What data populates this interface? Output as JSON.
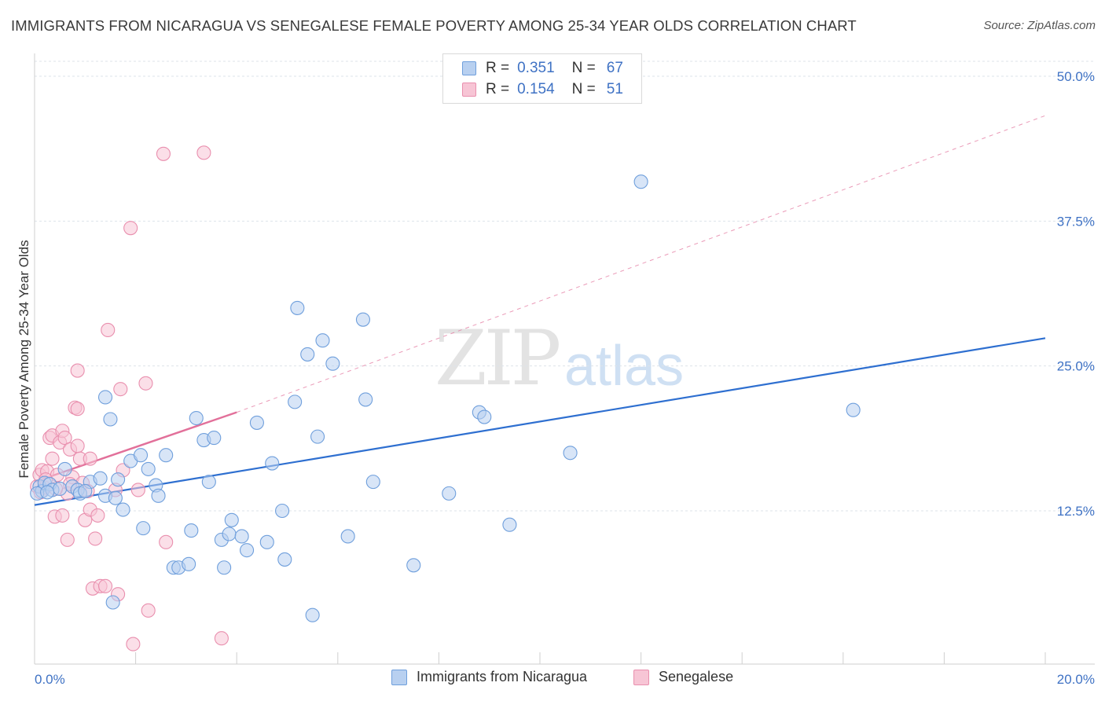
{
  "title": "IMMIGRANTS FROM NICARAGUA VS SENEGALESE FEMALE POVERTY AMONG 25-34 YEAR OLDS CORRELATION CHART",
  "source": "Source: ZipAtlas.com",
  "watermark": {
    "zip": "ZIP",
    "atlas": "atlas"
  },
  "colors": {
    "blue_fill": "#b8d0f0",
    "blue_stroke": "#6f9fdc",
    "blue_line": "#2e6fd0",
    "pink_fill": "#f7c5d5",
    "pink_stroke": "#e98fae",
    "pink_line": "#e2709a",
    "tick_text": "#3f72c4",
    "grid": "#dde3ea"
  },
  "legend": {
    "rows": [
      {
        "r_label": "R =",
        "r_value": "0.351",
        "n_label": "N =",
        "n_value": "67"
      },
      {
        "r_label": "R =",
        "r_value": "0.154",
        "n_label": "N =",
        "n_value": "51"
      }
    ]
  },
  "bottom_legend": [
    "Immigrants from Nicaragua",
    "Senegalese"
  ],
  "chart_data": {
    "type": "scatter",
    "title": "IMMIGRANTS FROM NICARAGUA VS SENEGALESE FEMALE POVERTY AMONG 25-34 YEAR OLDS CORRELATION CHART",
    "xlabel": "",
    "ylabel": "Female Poverty Among 25-34 Year Olds",
    "xlim": [
      0,
      20
    ],
    "ylim": [
      0,
      50
    ],
    "x_tick_labels": [
      "0.0%",
      "20.0%"
    ],
    "y_ticks": [
      12.5,
      25.0,
      37.5,
      50.0
    ],
    "y_tick_labels": [
      "12.5%",
      "25.0%",
      "37.5%",
      "50.0%"
    ],
    "grid": true,
    "legend_position": "top-center",
    "series": [
      {
        "name": "Immigrants from Nicaragua",
        "color": "#6f9fdc",
        "trend": {
          "x": [
            0,
            20
          ],
          "y": [
            13.0,
            27.4
          ]
        },
        "points": [
          [
            0.1,
            14.6
          ],
          [
            0.15,
            14.2
          ],
          [
            0.2,
            14.9
          ],
          [
            0.3,
            14.8
          ],
          [
            0.35,
            14.3
          ],
          [
            0.5,
            14.4
          ],
          [
            0.6,
            16.1
          ],
          [
            0.75,
            14.6
          ],
          [
            0.85,
            14.3
          ],
          [
            0.9,
            14.0
          ],
          [
            1.1,
            15.0
          ],
          [
            1.3,
            15.3
          ],
          [
            1.4,
            13.8
          ],
          [
            1.4,
            22.3
          ],
          [
            1.5,
            20.4
          ],
          [
            1.55,
            4.6
          ],
          [
            1.6,
            13.6
          ],
          [
            1.65,
            15.2
          ],
          [
            1.75,
            12.6
          ],
          [
            1.9,
            16.8
          ],
          [
            2.1,
            17.3
          ],
          [
            2.15,
            11.0
          ],
          [
            2.25,
            16.1
          ],
          [
            2.4,
            14.7
          ],
          [
            2.45,
            13.8
          ],
          [
            2.6,
            17.3
          ],
          [
            2.75,
            7.6
          ],
          [
            2.85,
            7.6
          ],
          [
            3.05,
            7.9
          ],
          [
            3.1,
            10.8
          ],
          [
            3.2,
            20.5
          ],
          [
            3.35,
            18.6
          ],
          [
            3.45,
            15.0
          ],
          [
            3.55,
            18.8
          ],
          [
            3.7,
            10.0
          ],
          [
            3.75,
            7.6
          ],
          [
            3.85,
            10.5
          ],
          [
            3.9,
            11.7
          ],
          [
            4.1,
            10.3
          ],
          [
            4.2,
            9.1
          ],
          [
            4.4,
            20.1
          ],
          [
            4.6,
            9.8
          ],
          [
            4.7,
            16.6
          ],
          [
            4.9,
            12.5
          ],
          [
            4.95,
            8.3
          ],
          [
            5.15,
            21.9
          ],
          [
            5.2,
            30.0
          ],
          [
            5.4,
            26.0
          ],
          [
            5.5,
            3.5
          ],
          [
            5.6,
            18.9
          ],
          [
            5.7,
            27.2
          ],
          [
            5.9,
            25.2
          ],
          [
            6.2,
            10.3
          ],
          [
            6.5,
            29.0
          ],
          [
            6.55,
            22.1
          ],
          [
            6.7,
            15.0
          ],
          [
            7.5,
            7.8
          ],
          [
            8.2,
            14.0
          ],
          [
            8.8,
            21.0
          ],
          [
            8.9,
            20.6
          ],
          [
            9.4,
            11.3
          ],
          [
            10.6,
            17.5
          ],
          [
            12.0,
            40.9
          ],
          [
            16.2,
            21.2
          ],
          [
            0.05,
            14.0
          ],
          [
            0.25,
            14.1
          ],
          [
            1.0,
            14.2
          ]
        ]
      },
      {
        "name": "Senegalese",
        "color": "#e98fae",
        "trend": {
          "x": [
            0,
            4.0
          ],
          "y": [
            15.0,
            21.0
          ]
        },
        "trend_extension": {
          "x": [
            4.0,
            20
          ],
          "y": [
            21.0,
            46.6
          ]
        },
        "points": [
          [
            0.05,
            14.6
          ],
          [
            0.1,
            15.6
          ],
          [
            0.15,
            16.0
          ],
          [
            0.2,
            14.5
          ],
          [
            0.25,
            15.9
          ],
          [
            0.3,
            18.8
          ],
          [
            0.35,
            17.0
          ],
          [
            0.35,
            19.0
          ],
          [
            0.4,
            12.0
          ],
          [
            0.45,
            15.6
          ],
          [
            0.5,
            18.4
          ],
          [
            0.55,
            19.4
          ],
          [
            0.55,
            12.1
          ],
          [
            0.6,
            18.8
          ],
          [
            0.65,
            14.0
          ],
          [
            0.65,
            10.0
          ],
          [
            0.7,
            17.8
          ],
          [
            0.75,
            15.4
          ],
          [
            0.8,
            21.4
          ],
          [
            0.85,
            21.3
          ],
          [
            0.85,
            18.1
          ],
          [
            0.85,
            24.6
          ],
          [
            0.9,
            17.0
          ],
          [
            0.95,
            14.9
          ],
          [
            1.0,
            11.7
          ],
          [
            1.05,
            14.2
          ],
          [
            1.1,
            17.0
          ],
          [
            1.1,
            12.6
          ],
          [
            1.15,
            5.8
          ],
          [
            1.2,
            10.1
          ],
          [
            1.25,
            12.1
          ],
          [
            1.3,
            6.0
          ],
          [
            1.4,
            6.0
          ],
          [
            1.45,
            28.1
          ],
          [
            1.6,
            14.3
          ],
          [
            1.65,
            5.3
          ],
          [
            1.7,
            23.0
          ],
          [
            1.75,
            16.0
          ],
          [
            1.9,
            36.9
          ],
          [
            1.95,
            1.0
          ],
          [
            2.05,
            14.3
          ],
          [
            2.2,
            23.5
          ],
          [
            2.25,
            3.9
          ],
          [
            2.55,
            43.3
          ],
          [
            2.6,
            9.8
          ],
          [
            3.35,
            43.4
          ],
          [
            3.7,
            1.5
          ],
          [
            0.12,
            14.1
          ],
          [
            0.22,
            15.2
          ],
          [
            0.42,
            14.4
          ],
          [
            0.7,
            14.8
          ]
        ]
      }
    ]
  }
}
